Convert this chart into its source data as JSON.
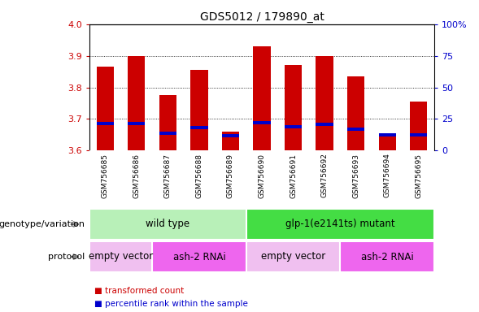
{
  "title": "GDS5012 / 179890_at",
  "samples": [
    "GSM756685",
    "GSM756686",
    "GSM756687",
    "GSM756688",
    "GSM756689",
    "GSM756690",
    "GSM756691",
    "GSM756692",
    "GSM756693",
    "GSM756694",
    "GSM756695"
  ],
  "red_values": [
    3.865,
    3.9,
    3.775,
    3.855,
    3.66,
    3.93,
    3.87,
    3.9,
    3.835,
    3.645,
    3.755
  ],
  "blue_values": [
    3.685,
    3.685,
    3.655,
    3.672,
    3.647,
    3.688,
    3.675,
    3.682,
    3.668,
    3.648,
    3.65
  ],
  "ymin": 3.6,
  "ymax": 4.0,
  "left_tick_color": "#cc0000",
  "right_tick_color": "#0000cc",
  "yticks_left": [
    3.6,
    3.7,
    3.8,
    3.9,
    4.0
  ],
  "yticks_right_labels": [
    "0",
    "25",
    "50",
    "75",
    "100%"
  ],
  "grid_yticks": [
    3.7,
    3.8,
    3.9
  ],
  "bar_color": "#cc0000",
  "blue_color": "#0000cc",
  "genotype_groups": [
    {
      "label": "wild type",
      "start": 0,
      "end": 5,
      "color": "#b8f0b8"
    },
    {
      "label": "glp-1(e2141ts) mutant",
      "start": 5,
      "end": 11,
      "color": "#44dd44"
    }
  ],
  "protocol_groups": [
    {
      "label": "empty vector",
      "start": 0,
      "end": 2,
      "color": "#f0c0f0"
    },
    {
      "label": "ash-2 RNAi",
      "start": 2,
      "end": 5,
      "color": "#ee66ee"
    },
    {
      "label": "empty vector",
      "start": 5,
      "end": 8,
      "color": "#f0c0f0"
    },
    {
      "label": "ash-2 RNAi",
      "start": 8,
      "end": 11,
      "color": "#ee66ee"
    }
  ],
  "legend_items": [
    {
      "color": "#cc0000",
      "label": "transformed count"
    },
    {
      "color": "#0000cc",
      "label": "percentile rank within the sample"
    }
  ],
  "genotype_label": "genotype/variation",
  "protocol_label": "protocol",
  "bar_width": 0.55,
  "xtick_bg": "#c8c8c8",
  "blue_bar_height": 0.01
}
